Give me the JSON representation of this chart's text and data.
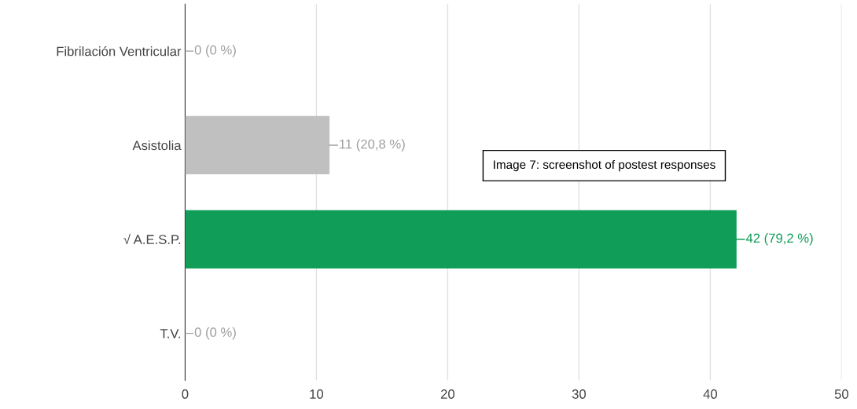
{
  "chart_data": {
    "type": "bar",
    "orientation": "horizontal",
    "categories": [
      "Fibrilación Ventricular",
      "Asistolia",
      "√ A.E.S.P.",
      "T.V."
    ],
    "values": [
      0,
      11,
      42,
      0
    ],
    "colors": [
      "#c0c0c0",
      "#c0c0c0",
      "#0f9d58",
      "#c0c0c0"
    ],
    "value_labels": [
      "0 (0 %)",
      "11 (20,8 %)",
      "42 (79,2 %)",
      "0 (0 %)"
    ],
    "xlim": [
      0,
      50
    ],
    "xticks": [
      0,
      10,
      20,
      30,
      40,
      50
    ],
    "grid": "x",
    "annotations": [
      "Image 7: screenshot of postest responses"
    ]
  }
}
